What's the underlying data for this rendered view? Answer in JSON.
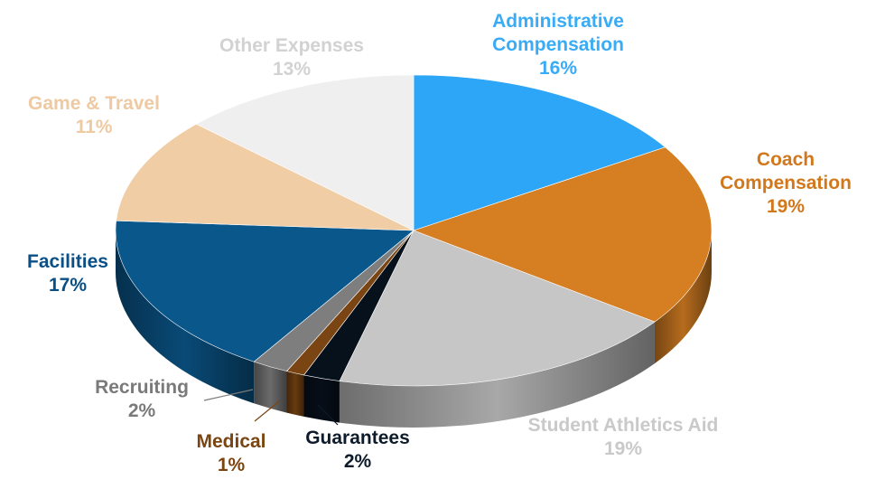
{
  "chart_data": {
    "type": "pie",
    "style": "3d-tilted",
    "start": "12 o'clock",
    "direction": "clockwise",
    "slices": [
      {
        "label": "Administrative\nCompensation",
        "value": 16,
        "pct_text": "16%",
        "color": "#2ea6f7",
        "label_color": "#3aabf5",
        "name": "administrative-compensation"
      },
      {
        "label": "Coach\nCompensation",
        "value": 19,
        "pct_text": "19%",
        "color": "#d67f22",
        "label_color": "#d2781c",
        "name": "coach-compensation"
      },
      {
        "label": "Student Athletics Aid",
        "value": 19,
        "pct_text": "19%",
        "color": "#c6c6c6",
        "label_color": "#c9c9c9",
        "name": "student-athletics-aid"
      },
      {
        "label": "Guarantees",
        "value": 2,
        "pct_text": "2%",
        "color": "#07111c",
        "label_color": "#0d1b2a",
        "name": "guarantees"
      },
      {
        "label": "Medical",
        "value": 1,
        "pct_text": "1%",
        "color": "#7a4512",
        "label_color": "#7a4512",
        "name": "medical"
      },
      {
        "label": "Recruiting",
        "value": 2,
        "pct_text": "2%",
        "color": "#7e7e7e",
        "label_color": "#7a7a7a",
        "name": "recruiting"
      },
      {
        "label": "Facilities",
        "value": 17,
        "pct_text": "17%",
        "color": "#0a578c",
        "label_color": "#0a4f85",
        "name": "facilities"
      },
      {
        "label": "Game & Travel",
        "value": 11,
        "pct_text": "11%",
        "color": "#f1cda6",
        "label_color": "#eec9a1",
        "name": "game-travel"
      },
      {
        "label": "Other Expenses",
        "value": 13,
        "pct_text": "13%",
        "color": "#efefef",
        "label_color": "#d2d2d2",
        "name": "other-expenses"
      }
    ]
  }
}
